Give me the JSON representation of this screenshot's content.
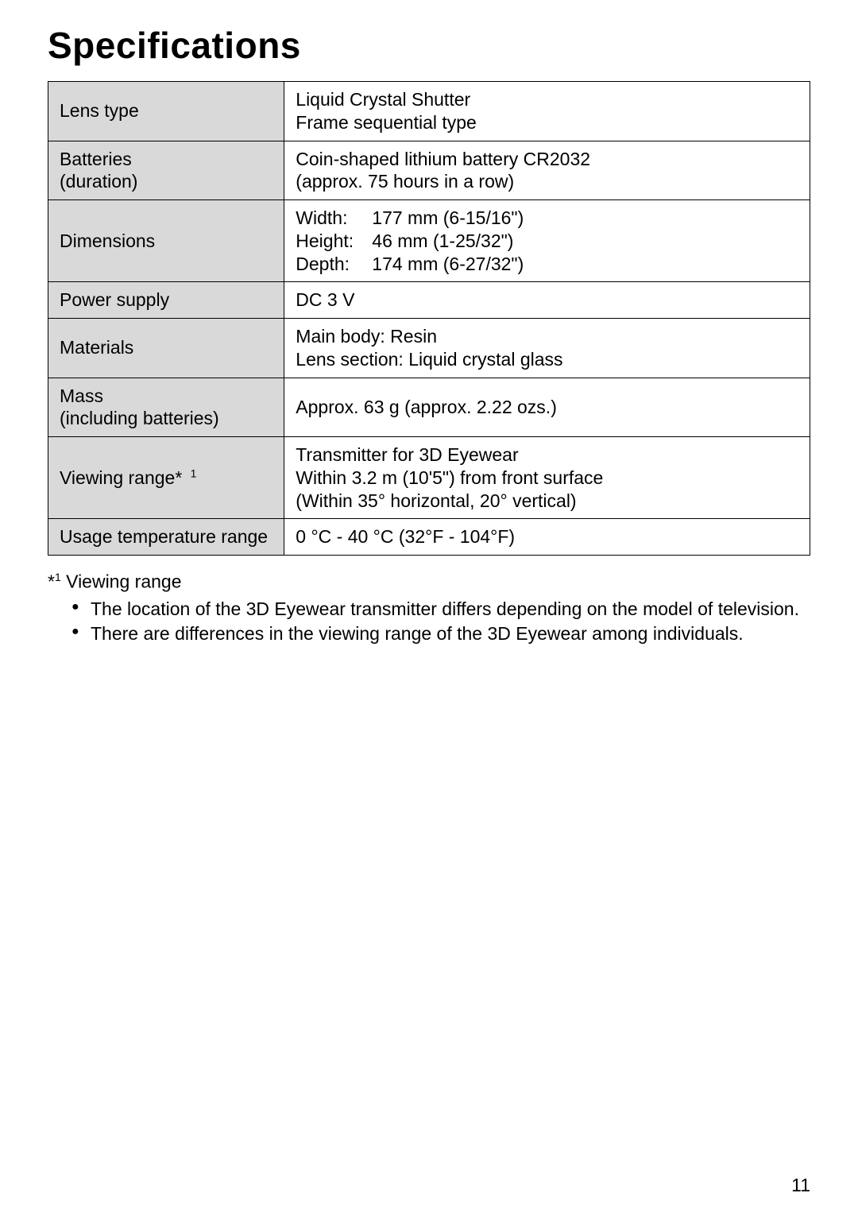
{
  "title": "Specifications",
  "table": {
    "rows": [
      {
        "label": "Lens type",
        "value": "Liquid Crystal Shutter\nFrame sequential type"
      },
      {
        "label": "Batteries\n(duration)",
        "value": "Coin-shaped lithium battery CR2032\n(approx. 75 hours in a row)"
      },
      {
        "label": "Dimensions",
        "dims": {
          "width_label": "Width:",
          "width_value": "177 mm (6-15/16\")",
          "height_label": "Height:",
          "height_value": "46 mm (1-25/32\")",
          "depth_label": "Depth:",
          "depth_value": "174 mm (6-27/32\")"
        }
      },
      {
        "label": "Power supply",
        "value": "DC 3 V"
      },
      {
        "label": "Materials",
        "value": "Main body: Resin\nLens section: Liquid crystal glass"
      },
      {
        "label": "Mass\n(including batteries)",
        "value": "Approx. 63 g (approx. 2.22 ozs.)"
      },
      {
        "label_html": "Viewing range*",
        "label_sup": "1",
        "value": "Transmitter for 3D Eyewear\nWithin 3.2 m (10'5\") from front surface\n(Within 35° horizontal, 20° vertical)"
      },
      {
        "label": "Usage temperature range",
        "value": "0 °C - 40 °C (32°F - 104°F)"
      }
    ],
    "label_bg": "#d9d9d9",
    "border_color": "#000000",
    "font_size": 23
  },
  "footnote": {
    "marker": "*",
    "marker_sup": "1",
    "heading": "Viewing range",
    "items": [
      "The location of the 3D Eyewear transmitter differs depending on the model of television.",
      "There are differences in the viewing range of the 3D Eyewear among individuals."
    ]
  },
  "page_number": "11"
}
